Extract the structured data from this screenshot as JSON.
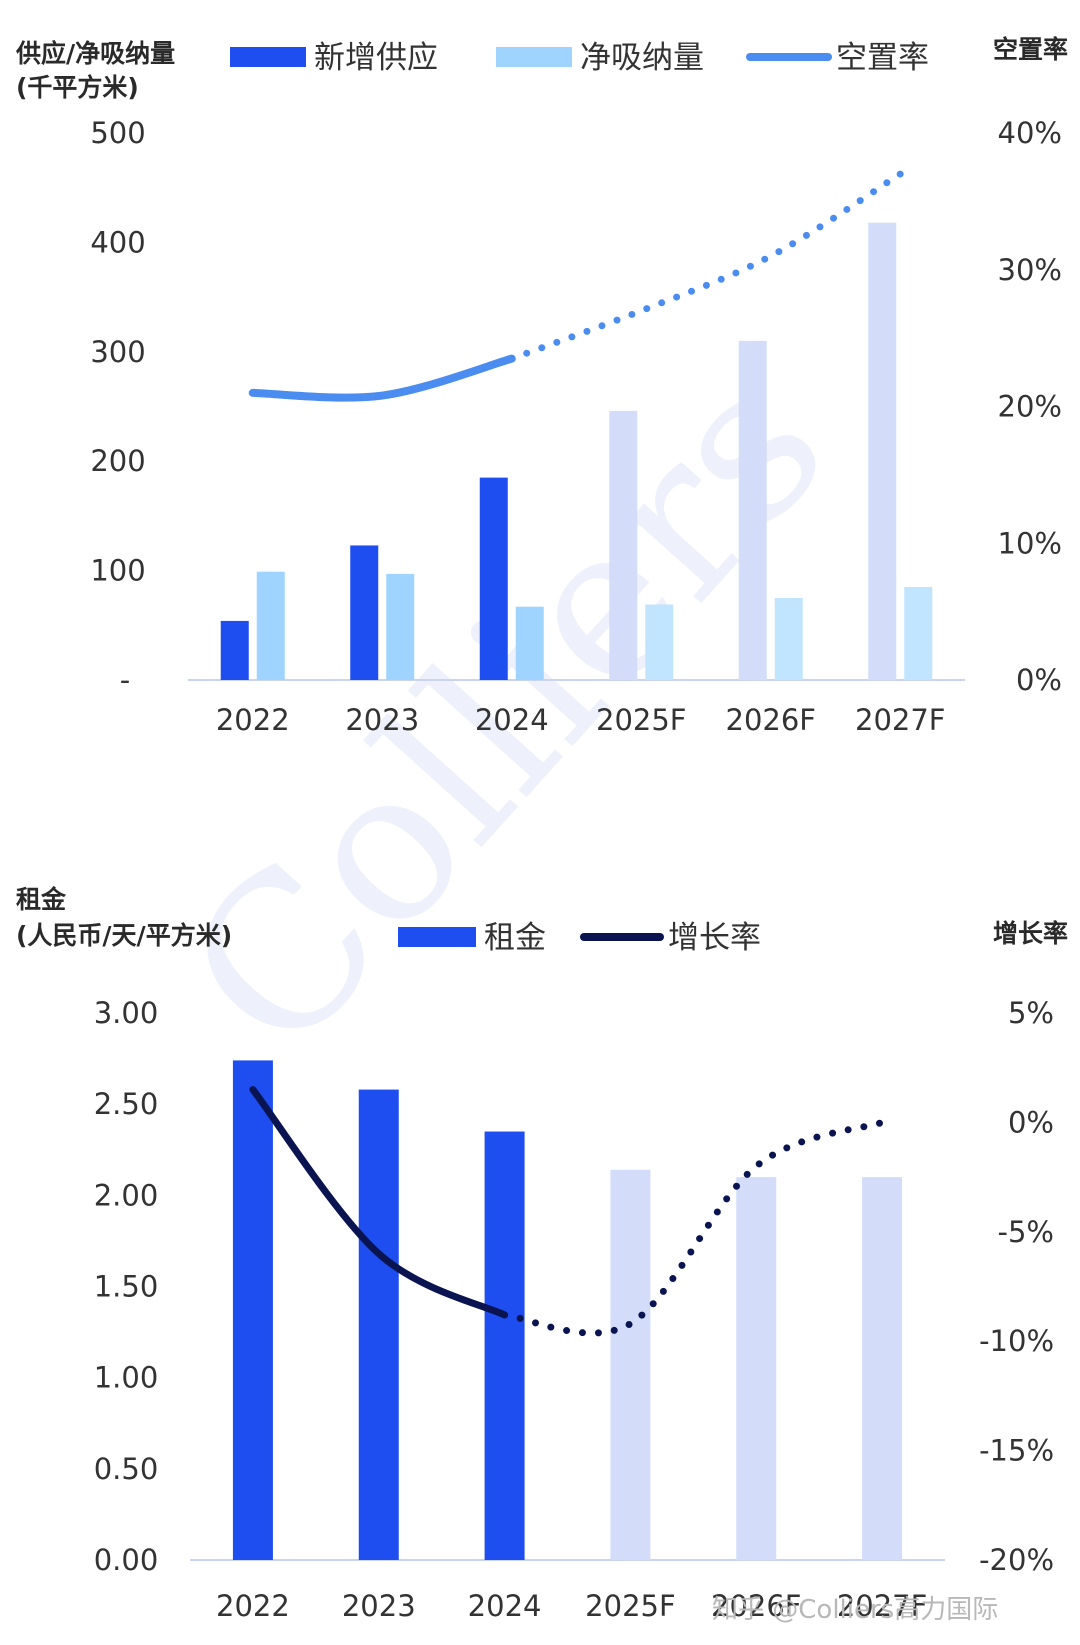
{
  "watermark": {
    "brand": "Colliers",
    "footer": "知乎 @Colliers高力国际"
  },
  "colors": {
    "supply": "#1f4ef0",
    "absorption": "#9ed4ff",
    "vacancy": "#4a8cf0",
    "rent": "#1f4ef0",
    "growth": "#0a1450",
    "forecast_bar": "#d3ddfa",
    "forecast_absorption": "#c2e5ff",
    "axis": "#c9d5ee"
  },
  "chart_data": [
    {
      "type": "bar",
      "left_axis_title": [
        "供应/净吸纳量",
        "(千平方米)"
      ],
      "right_axis_title": "空置率",
      "categories": [
        "2022",
        "2023",
        "2024",
        "2025F",
        "2026F",
        "2027F"
      ],
      "forecast_from_index": 3,
      "ylim": [
        0,
        500
      ],
      "y_ticks": [
        "-",
        "100",
        "200",
        "300",
        "400",
        "500"
      ],
      "y2lim": [
        0,
        40
      ],
      "y2_ticks": [
        "0%",
        "10%",
        "20%",
        "30%",
        "40%"
      ],
      "legend": [
        "新增供应",
        "净吸纳量",
        "空置率"
      ],
      "series": [
        {
          "name": "新增供应",
          "type": "bar",
          "values": [
            54,
            123,
            185,
            246,
            310,
            418
          ]
        },
        {
          "name": "净吸纳量",
          "type": "bar",
          "values": [
            99,
            97,
            67,
            69,
            75,
            85
          ]
        },
        {
          "name": "空置率",
          "type": "line",
          "axis": "right",
          "values": [
            21.0,
            20.8,
            23.5,
            27.0,
            31.0,
            37.0
          ]
        }
      ]
    },
    {
      "type": "bar",
      "left_axis_title": [
        "租金",
        "(人民币/天/平方米)"
      ],
      "right_axis_title": "增长率",
      "categories": [
        "2022",
        "2023",
        "2024",
        "2025F",
        "2026F",
        "2027F"
      ],
      "forecast_from_index": 3,
      "ylim": [
        0,
        3
      ],
      "y_ticks": [
        "0.00",
        "0.50",
        "1.00",
        "1.50",
        "2.00",
        "2.50",
        "3.00"
      ],
      "y2lim": [
        -20,
        5
      ],
      "y2_ticks": [
        "-20%",
        "-15%",
        "-10%",
        "-5%",
        "0%",
        "5%"
      ],
      "legend": [
        "租金",
        "增长率"
      ],
      "series": [
        {
          "name": "租金",
          "type": "bar",
          "values": [
            2.74,
            2.58,
            2.35,
            2.14,
            2.1,
            2.1
          ]
        },
        {
          "name": "增长率",
          "type": "line",
          "axis": "right",
          "values": [
            1.5,
            -6.0,
            -8.8,
            -9.2,
            -2.0,
            0.0
          ]
        }
      ]
    }
  ]
}
